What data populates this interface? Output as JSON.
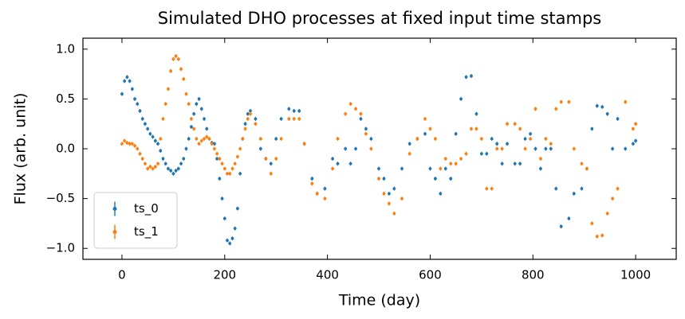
{
  "chart_data": {
    "type": "scatter",
    "title": "Simulated DHO processes at fixed input time stamps",
    "xlabel": "Time (day)",
    "ylabel": "Flux (arb. unit)",
    "x": [
      0,
      5,
      10,
      15,
      20,
      25,
      30,
      35,
      40,
      45,
      50,
      55,
      60,
      65,
      70,
      75,
      80,
      85,
      90,
      95,
      100,
      105,
      110,
      115,
      120,
      125,
      130,
      135,
      140,
      145,
      150,
      155,
      160,
      165,
      170,
      175,
      180,
      185,
      190,
      195,
      200,
      205,
      210,
      215,
      220,
      225,
      230,
      235,
      240,
      245,
      250,
      260,
      270,
      280,
      290,
      300,
      310,
      325,
      335,
      345,
      355,
      370,
      380,
      395,
      410,
      420,
      435,
      445,
      455,
      465,
      475,
      485,
      500,
      510,
      520,
      530,
      545,
      560,
      575,
      590,
      600,
      610,
      620,
      630,
      640,
      650,
      660,
      670,
      680,
      690,
      700,
      710,
      720,
      730,
      740,
      750,
      765,
      775,
      785,
      795,
      805,
      815,
      825,
      835,
      845,
      855,
      870,
      880,
      895,
      905,
      915,
      925,
      935,
      945,
      955,
      965,
      980,
      995,
      1000
    ],
    "series": [
      {
        "name": "ts_0",
        "color": "#1f77b4",
        "values": [
          0.55,
          0.68,
          0.72,
          0.68,
          0.6,
          0.5,
          0.45,
          0.38,
          0.3,
          0.25,
          0.2,
          0.15,
          0.12,
          0.08,
          0.05,
          -0.02,
          -0.1,
          -0.15,
          -0.2,
          -0.22,
          -0.25,
          -0.22,
          -0.2,
          -0.15,
          -0.1,
          0.0,
          0.1,
          0.22,
          0.35,
          0.45,
          0.5,
          0.4,
          0.3,
          0.2,
          0.1,
          0.06,
          0.05,
          -0.1,
          -0.3,
          -0.5,
          -0.7,
          -0.92,
          -0.95,
          -0.9,
          -0.8,
          -0.6,
          -0.25,
          0.1,
          0.25,
          0.35,
          0.38,
          0.3,
          0.0,
          -0.1,
          -0.15,
          0.1,
          0.3,
          0.4,
          0.38,
          0.38,
          0.05,
          -0.3,
          -0.45,
          -0.4,
          -0.1,
          -0.15,
          0.0,
          -0.15,
          0.0,
          0.3,
          0.2,
          0.1,
          -0.2,
          -0.3,
          -0.45,
          -0.4,
          -0.2,
          0.05,
          0.1,
          0.15,
          -0.2,
          -0.3,
          -0.45,
          -0.2,
          -0.3,
          0.15,
          0.5,
          0.72,
          0.73,
          0.35,
          -0.05,
          -0.05,
          0.1,
          0.05,
          -0.15,
          0.05,
          -0.15,
          -0.15,
          0.1,
          0.15,
          0.0,
          -0.2,
          0.0,
          0.0,
          -0.4,
          -0.78,
          -0.7,
          -0.45,
          -0.4,
          -0.2,
          0.2,
          0.43,
          0.42,
          0.35,
          0.0,
          0.3,
          0.0,
          0.05,
          0.08
        ]
      },
      {
        "name": "ts_1",
        "color": "#ff7f0e",
        "values": [
          0.05,
          0.08,
          0.06,
          0.05,
          0.05,
          0.03,
          0.0,
          -0.05,
          -0.1,
          -0.15,
          -0.2,
          -0.18,
          -0.2,
          -0.18,
          -0.15,
          0.1,
          0.3,
          0.45,
          0.6,
          0.78,
          0.9,
          0.93,
          0.9,
          0.8,
          0.7,
          0.55,
          0.45,
          0.3,
          0.2,
          0.1,
          0.05,
          0.08,
          0.1,
          0.12,
          0.1,
          0.05,
          0.0,
          -0.05,
          -0.1,
          -0.15,
          -0.2,
          -0.25,
          -0.25,
          -0.2,
          -0.15,
          -0.08,
          0.0,
          0.1,
          0.2,
          0.3,
          0.35,
          0.25,
          0.1,
          -0.1,
          -0.25,
          -0.1,
          0.1,
          0.3,
          0.3,
          0.3,
          0.05,
          -0.35,
          -0.45,
          -0.5,
          -0.2,
          0.1,
          0.35,
          0.45,
          0.4,
          0.35,
          0.15,
          0.0,
          -0.3,
          -0.45,
          -0.55,
          -0.65,
          -0.5,
          -0.05,
          0.1,
          0.3,
          0.2,
          0.1,
          -0.2,
          -0.1,
          -0.15,
          -0.15,
          -0.1,
          -0.05,
          0.2,
          0.2,
          0.1,
          -0.4,
          -0.4,
          0.0,
          0.0,
          0.25,
          0.25,
          0.2,
          0.0,
          0.1,
          0.4,
          -0.1,
          0.1,
          0.05,
          0.4,
          0.47,
          0.47,
          0.0,
          -0.15,
          -0.2,
          -0.75,
          -0.88,
          -0.87,
          -0.65,
          -0.5,
          -0.4,
          0.47,
          0.2,
          0.25
        ]
      }
    ],
    "xlim": [
      -76,
      1079
    ],
    "ylim": [
      -1.11,
      1.11
    ],
    "xticks": [
      0,
      200,
      400,
      600,
      800,
      1000
    ],
    "yticks": [
      {
        "value": -1,
        "label": "−1.0"
      },
      {
        "value": -0.5,
        "label": "−0.5"
      },
      {
        "value": 0,
        "label": "0.0"
      },
      {
        "value": 0.5,
        "label": "0.5"
      },
      {
        "value": 1,
        "label": "1.0"
      }
    ],
    "legend": "lower left"
  }
}
